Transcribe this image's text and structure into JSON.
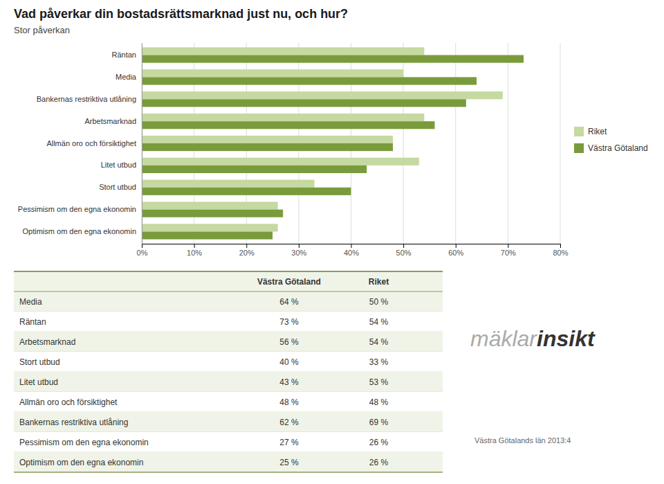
{
  "chart_data": {
    "type": "bar",
    "orientation": "horizontal",
    "title": "Vad påverkar din bostadsrättsmarknad just nu, och hur?",
    "subtitle": "Stor påverkan",
    "categories": [
      "Räntan",
      "Media",
      "Bankernas restriktiva utlåning",
      "Arbetsmarknad",
      "Allmän oro och försiktighet",
      "Litet utbud",
      "Stort utbud",
      "Pessimism om den egna ekonomin",
      "Optimism om den egna ekonomin"
    ],
    "series": [
      {
        "name": "Riket",
        "color": "#c5d9a0",
        "values": [
          0.54,
          0.5,
          0.69,
          0.54,
          0.48,
          0.53,
          0.33,
          0.26,
          0.26
        ]
      },
      {
        "name": "Västra Götaland",
        "color": "#7a9b3c",
        "values": [
          0.73,
          0.64,
          0.62,
          0.56,
          0.48,
          0.43,
          0.4,
          0.27,
          0.25
        ]
      }
    ],
    "xlim": [
      0,
      0.8
    ],
    "xticks": [
      {
        "value": 0,
        "label": "0%"
      },
      {
        "value": 0.1,
        "label": "10%"
      },
      {
        "value": 0.2,
        "label": "20%"
      },
      {
        "value": 0.3,
        "label": "30%"
      },
      {
        "value": 0.4,
        "label": "40%"
      },
      {
        "value": 0.5,
        "label": "50%"
      },
      {
        "value": 0.6,
        "label": "60%"
      },
      {
        "value": 0.7,
        "label": "70%"
      },
      {
        "value": 0.8,
        "label": "80%"
      }
    ],
    "grid": true,
    "legend": "right",
    "table": {
      "header": [
        null,
        "Västra Götaland",
        "Riket"
      ],
      "rows": [
        [
          "Media",
          "64 %",
          "50 %"
        ],
        [
          "Räntan",
          "73 %",
          "54 %"
        ],
        [
          "Arbetsmarknad",
          "56 %",
          "54 %"
        ],
        [
          "Stort utbud",
          "40 %",
          "33 %"
        ],
        [
          "Litet utbud",
          "43 %",
          "53 %"
        ],
        [
          "Allmän oro och försiktighet",
          "48 %",
          "48 %"
        ],
        [
          "Bankernas restriktiva utlåning",
          "62 %",
          "69 %"
        ],
        [
          "Pessimism om den egna ekonomin",
          "27 %",
          "26 %"
        ],
        [
          "Optimism om den egna ekonomin",
          "25 %",
          "26 %"
        ]
      ]
    },
    "annotations": [
      "mäklar",
      "insikt",
      "Västra Götalands län 2013:4"
    ]
  }
}
